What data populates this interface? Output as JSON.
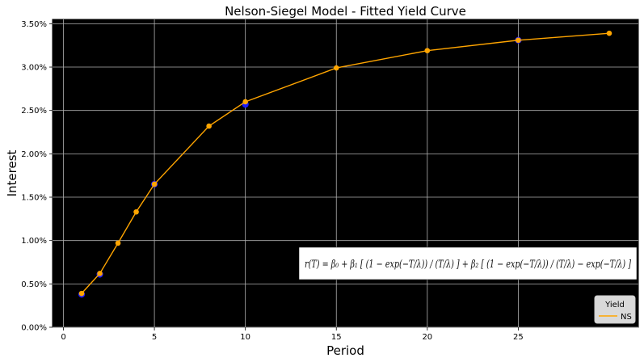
{
  "chart_data": {
    "type": "line",
    "title": "Nelson-Siegel Model - Fitted Yield Curve",
    "xlabel": "Period",
    "ylabel": "Interest",
    "xlim": [
      -0.6,
      31.6
    ],
    "ylim": [
      0,
      3.55
    ],
    "xticks": [
      0,
      5,
      10,
      15,
      20,
      25
    ],
    "yticks": [
      0,
      0.5,
      1.0,
      1.5,
      2.0,
      2.5,
      3.0,
      3.5
    ],
    "ytick_labels": [
      "0.00%",
      "0.50%",
      "1.00%",
      "1.50%",
      "2.00%",
      "2.50%",
      "3.00%",
      "3.50%"
    ],
    "grid": true,
    "background": "#000000",
    "series": [
      {
        "name": "NS",
        "color": "#ffa500",
        "x": [
          1,
          2,
          3,
          4,
          5,
          8,
          10,
          15,
          20,
          25,
          30
        ],
        "values": [
          0.39,
          0.62,
          0.97,
          1.33,
          1.65,
          2.32,
          2.6,
          2.99,
          3.19,
          3.31,
          3.39
        ]
      }
    ],
    "observed": {
      "color": "#1a1aff",
      "x": [
        1,
        2,
        5,
        10,
        25
      ],
      "values": [
        0.38,
        0.61,
        1.65,
        2.57,
        3.31
      ]
    },
    "legend": {
      "title": "Yield",
      "position": "bottom-right"
    },
    "annotation": "r(T) = β₀ + β₁ [ (1 − exp(−T/λ)) / (T/λ) ] + β₂ [ (1 − exp(−T/λ)) / (T/λ) − exp(−T/λ) ]"
  }
}
